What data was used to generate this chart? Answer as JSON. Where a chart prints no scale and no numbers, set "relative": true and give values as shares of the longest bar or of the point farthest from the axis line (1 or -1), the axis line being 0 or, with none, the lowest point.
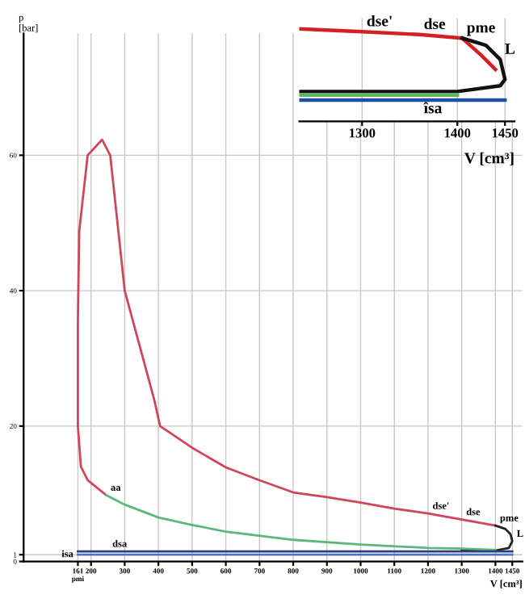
{
  "chart_data": [
    {
      "type": "line",
      "ylabel": "p [bar]",
      "xlabel": "V [cm³]",
      "xlim": [
        0,
        1480
      ],
      "ylim": [
        0,
        78
      ],
      "xticks": [
        {
          "value": 161,
          "label": "161\npmi"
        },
        200,
        300,
        400,
        500,
        600,
        700,
        800,
        900,
        1000,
        1100,
        1200,
        1300,
        1400,
        1450
      ],
      "yticks": [
        0,
        1,
        20,
        40,
        60
      ],
      "grid": true,
      "legend": false,
      "line_style": "solid",
      "marker": "none",
      "series": [
        {
          "color": "#d0455a",
          "x": [
            245,
            190,
            170,
            161,
            161,
            165,
            190,
            233,
            257,
            300,
            388,
            405,
            500,
            600,
            700,
            800,
            900,
            1000,
            1100,
            1200,
            1300,
            1400
          ],
          "values": [
            9.8,
            12,
            14,
            20,
            35.5,
            48.8,
            60,
            62.3,
            60,
            40,
            23.8,
            20,
            16.8,
            13.9,
            12,
            10.2,
            9.5,
            8.7,
            7.8,
            7.1,
            6.2,
            5.3
          ]
        },
        {
          "color": "#222222",
          "x": [
            1400,
            1430,
            1445,
            1450,
            1440,
            1400,
            1300
          ],
          "values": [
            5.3,
            4.8,
            4,
            3,
            2,
            1.6,
            1.6
          ]
        },
        {
          "color": "#5cb87a",
          "x": [
            1400,
            1300,
            1200,
            1000,
            800,
            600,
            500,
            400,
            300,
            245
          ],
          "values": [
            1.7,
            1.9,
            2.0,
            2.5,
            3.2,
            4.4,
            5.4,
            6.5,
            8.4,
            9.8
          ]
        },
        {
          "color": "#2c3e7a",
          "x": [
            161,
            1450
          ],
          "values": [
            1.5,
            1.5
          ]
        },
        {
          "color": "#4a78c8",
          "x": [
            161,
            1450
          ],
          "values": [
            1.0,
            1.0
          ]
        }
      ],
      "annotations": [
        {
          "text": "aa",
          "x": 245,
          "y": 9.8
        },
        {
          "text": "dse'",
          "x": 1200,
          "y": 7.1
        },
        {
          "text": "dse",
          "x": 1300,
          "y": 6.2
        },
        {
          "text": "pme",
          "x": 1400,
          "y": 5.3
        },
        {
          "text": "L",
          "x": 1450,
          "y": 3
        },
        {
          "text": "dsa",
          "x": 250,
          "y": 1.5
        },
        {
          "text": "isa",
          "x": 161,
          "y": 1.0
        }
      ]
    },
    {
      "type": "line",
      "relative": true,
      "xlabel": "V [cm³]",
      "xlim": [
        1234,
        1460
      ],
      "xticks": [
        1300,
        1400,
        1450
      ],
      "grid": "x",
      "legend": false,
      "line_style": "solid",
      "marker": "none",
      "series": [
        {
          "color": "#d42020",
          "x": [
            1234,
            1300,
            1360,
            1405
          ],
          "values": [
            1.0,
            0.96,
            0.92,
            0.87
          ]
        },
        {
          "color": "#d42020",
          "x": [
            1405,
            1425,
            1440
          ],
          "values": [
            0.87,
            0.63,
            0.43
          ]
        },
        {
          "color": "#111111",
          "x": [
            1405,
            1430,
            1445,
            1450,
            1445,
            1400,
            1234
          ],
          "values": [
            0.87,
            0.77,
            0.57,
            0.29,
            0.2,
            0.12,
            0.12
          ]
        },
        {
          "color": "#5cb85c",
          "x": [
            1234,
            1400
          ],
          "values": [
            0.07,
            0.07
          ]
        },
        {
          "color": "#1f4fa0",
          "x": [
            1234,
            1450
          ],
          "values": [
            0,
            0
          ]
        }
      ],
      "annotations": [
        {
          "text": "dse'",
          "x": 1300,
          "y": 0.96
        },
        {
          "text": "dse",
          "x": 1360,
          "y": 0.92
        },
        {
          "text": "pme",
          "x": 1405,
          "y": 0.87
        },
        {
          "text": "L",
          "x": 1445,
          "y": 0.57
        },
        {
          "text": "îsa",
          "x": 1360,
          "y": 0
        }
      ]
    }
  ]
}
